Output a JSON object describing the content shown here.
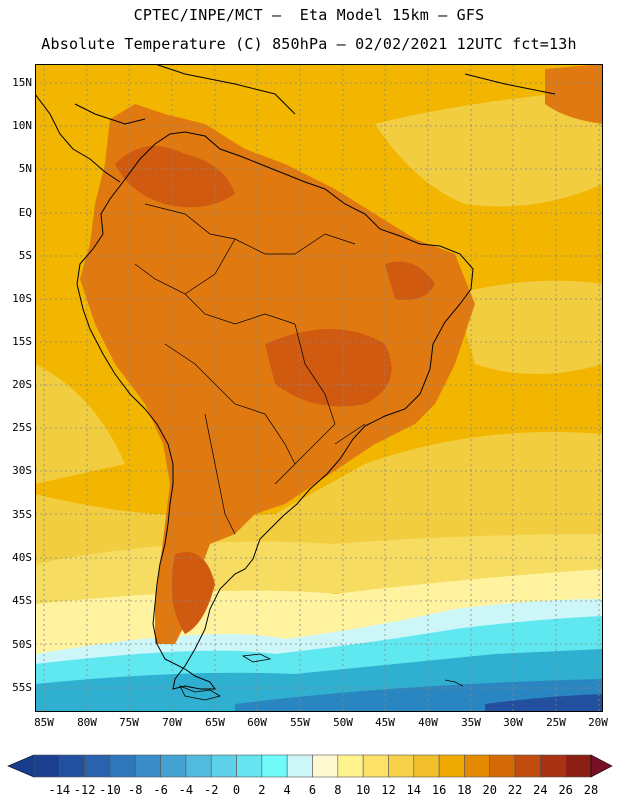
{
  "header": {
    "line1": "CPTEC/INPE/MCT –  Eta Model 15km – GFS",
    "line2": "Absolute Temperature (C) 850hPa – 02/02/2021 12UTC fct=13h"
  },
  "map": {
    "lat_labels": [
      "15N",
      "10N",
      "5N",
      "EQ",
      "5S",
      "10S",
      "15S",
      "20S",
      "25S",
      "30S",
      "35S",
      "40S",
      "45S",
      "50S",
      "55S"
    ],
    "lon_labels": [
      "85W",
      "80W",
      "75W",
      "70W",
      "65W",
      "60W",
      "55W",
      "50W",
      "45W",
      "40W",
      "35W",
      "30W",
      "25W",
      "20W"
    ],
    "colors": {
      "ocean_warm": "#f2b600",
      "land_hot": "#e07a10",
      "land_hotter": "#cf5a10",
      "ocean_mild": "#f3cd40",
      "cool": "#fff3a0",
      "cold": "#60e8f0",
      "colder": "#30b0d0",
      "coldest": "#2a86c0",
      "coast": "#000000",
      "grid": "#888888"
    }
  },
  "colorbar": {
    "labels": [
      "-14",
      "-12",
      "-10",
      "-8",
      "-6",
      "-4",
      "-2",
      "0",
      "2",
      "4",
      "6",
      "8",
      "10",
      "12",
      "14",
      "16",
      "18",
      "20",
      "22",
      "24",
      "26",
      "28"
    ],
    "colors": [
      "#1c3f8f",
      "#23509e",
      "#2a63ad",
      "#2f77bb",
      "#3a8dc8",
      "#45a3d3",
      "#52badd",
      "#5ed0e8",
      "#66e4ef",
      "#70fbfb",
      "#cdf6f9",
      "#fff9d2",
      "#fff38e",
      "#fde066",
      "#f8d14b",
      "#f2bf2c",
      "#eeaa00",
      "#e48a00",
      "#d46a06",
      "#c04d0d",
      "#a83212",
      "#8b1f14"
    ],
    "under_color": "#183c8e",
    "over_color": "#7a1028"
  }
}
